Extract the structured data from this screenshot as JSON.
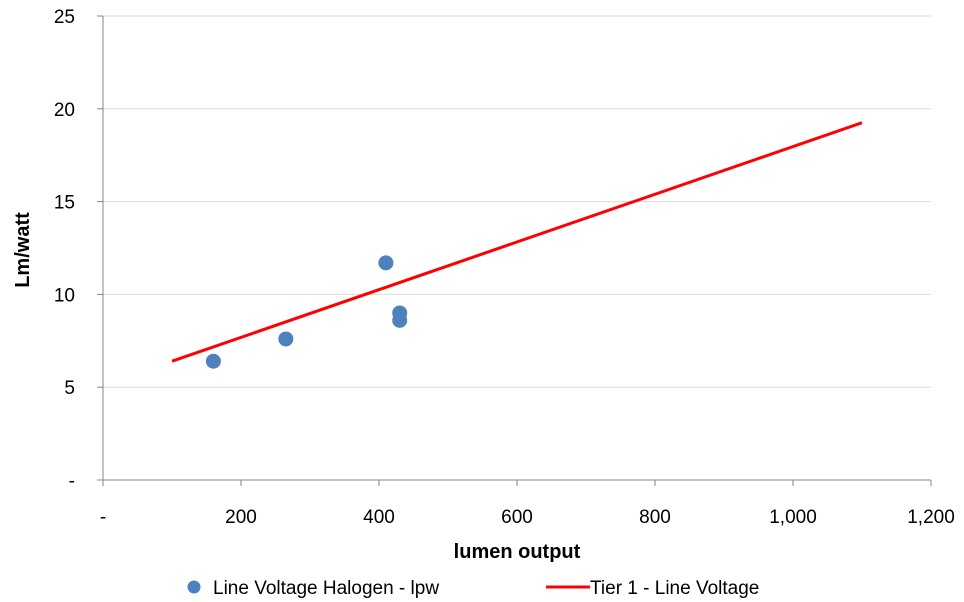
{
  "chart_data": {
    "type": "scatter",
    "title": "",
    "xlabel": "lumen output",
    "ylabel": "Lm/watt",
    "xlim": [
      0,
      1200
    ],
    "ylim": [
      0,
      25
    ],
    "x_ticks": [
      {
        "value": 0,
        "label": "-"
      },
      {
        "value": 200,
        "label": "200"
      },
      {
        "value": 400,
        "label": "400"
      },
      {
        "value": 600,
        "label": "600"
      },
      {
        "value": 800,
        "label": "800"
      },
      {
        "value": 1000,
        "label": "1,000"
      },
      {
        "value": 1200,
        "label": "1,200"
      }
    ],
    "y_ticks": [
      {
        "value": 0,
        "label": "-"
      },
      {
        "value": 5,
        "label": "5"
      },
      {
        "value": 10,
        "label": "10"
      },
      {
        "value": 15,
        "label": "15"
      },
      {
        "value": 20,
        "label": "20"
      },
      {
        "value": 25,
        "label": "25"
      }
    ],
    "grid": {
      "horizontal": true,
      "vertical": false
    },
    "legend_position": "bottom",
    "series": [
      {
        "name": "Line Voltage Halogen - lpw",
        "kind": "scatter",
        "color": "#4f81bd",
        "points": [
          {
            "x": 160,
            "y": 6.4
          },
          {
            "x": 265,
            "y": 7.6
          },
          {
            "x": 410,
            "y": 11.7
          },
          {
            "x": 430,
            "y": 9.0
          },
          {
            "x": 430,
            "y": 8.6
          }
        ]
      },
      {
        "name": "Tier 1 - Line Voltage",
        "kind": "line",
        "color": "#ff0000",
        "points": [
          {
            "x": 100,
            "y": 6.4
          },
          {
            "x": 1100,
            "y": 19.25
          }
        ]
      }
    ]
  }
}
